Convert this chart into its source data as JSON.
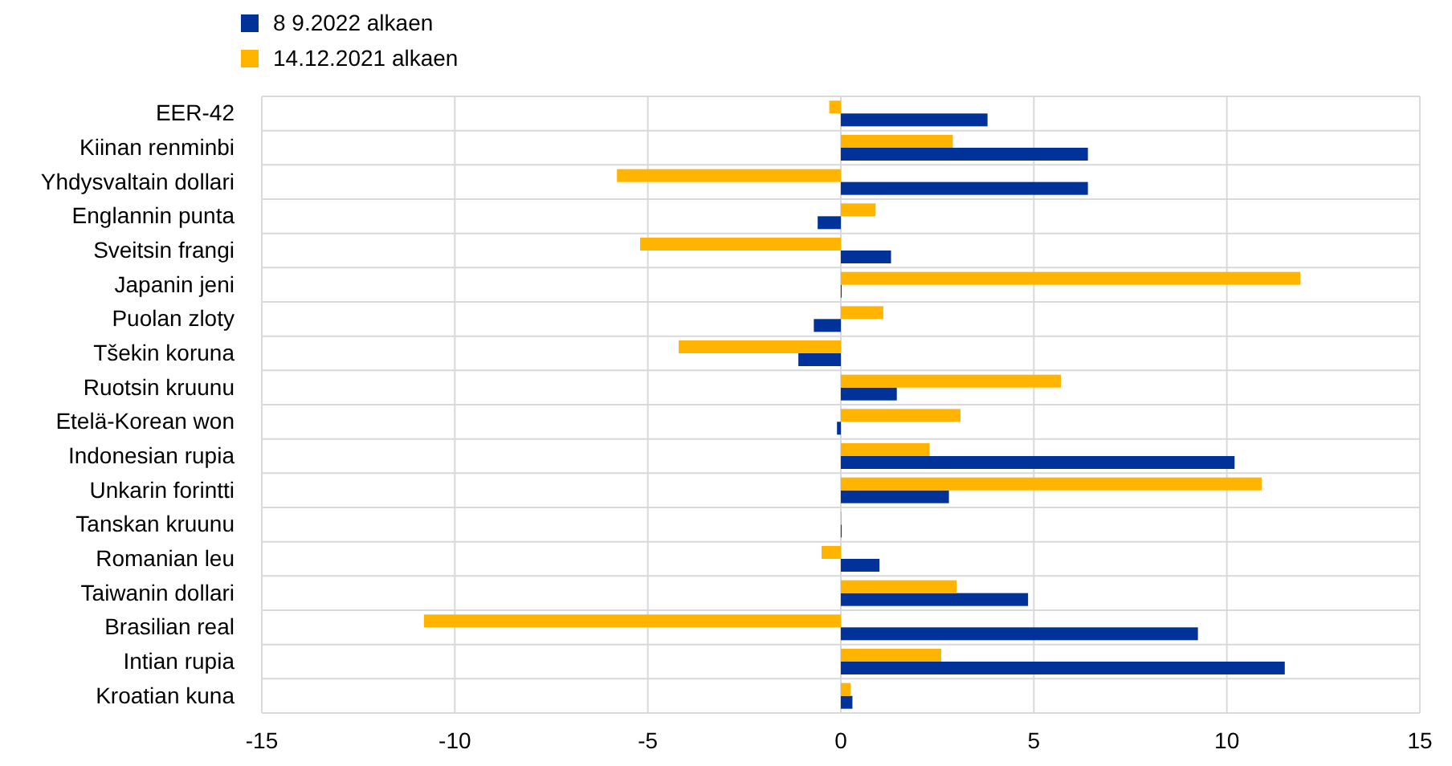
{
  "chart_data": {
    "type": "bar",
    "orientation": "horizontal",
    "categories": [
      "EER-42",
      "Kiinan renminbi",
      "Yhdysvaltain dollari",
      "Englannin punta",
      "Sveitsin frangi",
      "Japanin jeni",
      "Puolan zloty",
      "Tšekin koruna",
      "Ruotsin kruunu",
      "Etelä-Korean won",
      "Indonesian rupia",
      "Unkarin forintti",
      "Tanskan kruunu",
      "Romanian leu",
      "Taiwanin dollari",
      "Brasilian real",
      "Intian rupia",
      "Kroatian kuna"
    ],
    "series": [
      {
        "name": "8 9.2022 alkaen",
        "color": "#003299",
        "values": [
          3.8,
          6.4,
          6.4,
          -0.6,
          1.3,
          0,
          -0.7,
          -1.1,
          1.45,
          -0.1,
          10.2,
          2.8,
          0,
          1.0,
          4.85,
          9.25,
          11.5,
          0.3
        ]
      },
      {
        "name": "14.12.2021 alkaen",
        "color": "#ffb400",
        "values": [
          -0.3,
          2.9,
          -5.8,
          0.9,
          -5.2,
          11.9,
          1.1,
          -4.2,
          5.7,
          3.1,
          2.3,
          10.9,
          0,
          -0.5,
          3.0,
          -10.8,
          2.6,
          0.25
        ]
      }
    ],
    "xlim": [
      -15,
      15
    ],
    "xticks": [
      -15,
      -10,
      -5,
      0,
      5,
      10,
      15
    ],
    "grid": true,
    "legend": "top left"
  }
}
